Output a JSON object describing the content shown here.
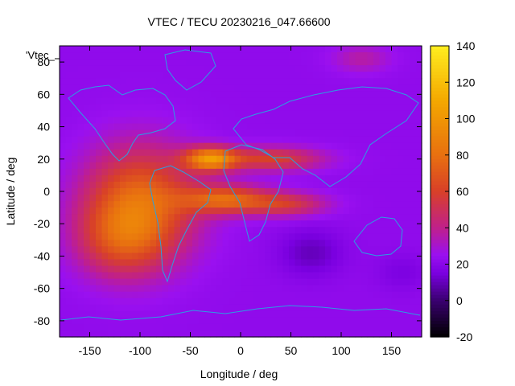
{
  "chart_data": {
    "type": "heatmap",
    "title": "VTEC / TECU 20230216_047.66600",
    "xlabel": "Longitude / deg",
    "ylabel": "Latitude / deg",
    "series_label": "'Vtec_",
    "xlim": [
      -180,
      180
    ],
    "ylim": [
      -90,
      90
    ],
    "xticks": [
      -150,
      -100,
      -50,
      0,
      50,
      100,
      150
    ],
    "yticks": [
      -80,
      -60,
      -40,
      -20,
      0,
      20,
      40,
      60,
      80
    ],
    "colorbar": {
      "range": [
        -20,
        140
      ],
      "ticks": [
        -20,
        0,
        20,
        40,
        60,
        80,
        100,
        120,
        140
      ],
      "palette": [
        "#000000",
        "#3a0070",
        "#7a00e0",
        "#9a10f0",
        "#c0208a",
        "#d84028",
        "#e87010",
        "#f4a800",
        "#ffee20"
      ],
      "palette_stops": [
        -20,
        0,
        15,
        25,
        40,
        60,
        80,
        110,
        140
      ]
    },
    "background_level": 22,
    "features": [
      {
        "name": "americas-anomaly",
        "lon": -100,
        "lat": -8,
        "sigma_lon": 38,
        "sigma_lat": 24,
        "value": 56
      },
      {
        "name": "americas-south-crest",
        "lon": -120,
        "lat": -30,
        "sigma_lon": 30,
        "sigma_lat": 16,
        "value": 28
      },
      {
        "name": "north-crest",
        "lon": -30,
        "lat": 20,
        "sigma_lon": 18,
        "sigma_lat": 5,
        "value": 70
      },
      {
        "name": "north-crest-tail",
        "lon": 30,
        "lat": 20,
        "sigma_lon": 35,
        "sigma_lat": 5,
        "value": 38
      },
      {
        "name": "south-crest",
        "lon": -15,
        "lat": -5,
        "sigma_lon": 30,
        "sigma_lat": 6,
        "value": 52
      },
      {
        "name": "south-crest-tail",
        "lon": 45,
        "lat": -8,
        "sigma_lon": 28,
        "sigma_lat": 5,
        "value": 32
      },
      {
        "name": "east-trough",
        "lon": 70,
        "lat": -38,
        "sigma_lon": 22,
        "sigma_lat": 10,
        "value": -12
      },
      {
        "name": "pacific-low",
        "lon": 160,
        "lat": -50,
        "sigma_lon": 18,
        "sigma_lat": 8,
        "value": -6
      },
      {
        "name": "arctic-spot",
        "lon": 120,
        "lat": 82,
        "sigma_lon": 20,
        "sigma_lat": 6,
        "value": 14
      }
    ]
  }
}
